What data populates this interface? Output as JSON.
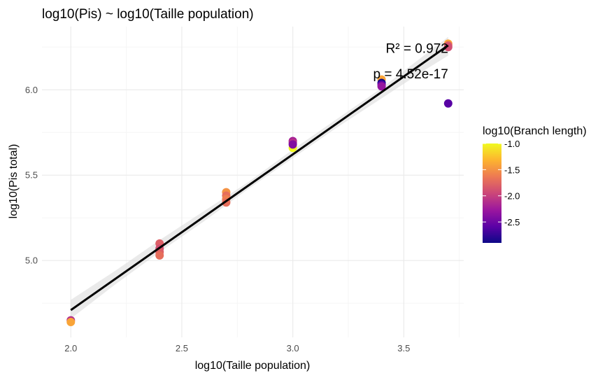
{
  "chart_data": {
    "type": "scatter",
    "title": "log10(Pis) ~ log10(Taille population)",
    "xlabel": "log10(Taille population)",
    "ylabel": "log10(Pis total)",
    "xlim": [
      1.87,
      3.77
    ],
    "ylim": [
      4.55,
      6.37
    ],
    "x_ticks": [
      2.0,
      2.5,
      3.0,
      3.5
    ],
    "x_tick_labels": [
      "2.0",
      "2.5",
      "3.0",
      "3.5"
    ],
    "y_ticks": [
      5.0,
      5.5,
      6.0
    ],
    "y_tick_labels": [
      "5.0",
      "5.5",
      "6.0"
    ],
    "grid": true,
    "points": [
      {
        "x": 2.0,
        "y": 4.65,
        "c": -2.1
      },
      {
        "x": 2.0,
        "y": 4.64,
        "c": -1.4
      },
      {
        "x": 2.4,
        "y": 5.1,
        "c": -1.8
      },
      {
        "x": 2.4,
        "y": 5.07,
        "c": -1.9
      },
      {
        "x": 2.4,
        "y": 5.05,
        "c": -1.8
      },
      {
        "x": 2.4,
        "y": 5.03,
        "c": -1.7
      },
      {
        "x": 2.7,
        "y": 5.4,
        "c": -1.5
      },
      {
        "x": 2.7,
        "y": 5.38,
        "c": -1.7
      },
      {
        "x": 2.7,
        "y": 5.36,
        "c": -1.6
      },
      {
        "x": 2.7,
        "y": 5.34,
        "c": -1.7
      },
      {
        "x": 3.0,
        "y": 5.66,
        "c": -1.0
      },
      {
        "x": 3.0,
        "y": 5.7,
        "c": -2.2
      },
      {
        "x": 3.0,
        "y": 5.69,
        "c": -2.1
      },
      {
        "x": 3.0,
        "y": 5.68,
        "c": -2.4
      },
      {
        "x": 3.4,
        "y": 6.06,
        "c": -1.4
      },
      {
        "x": 3.4,
        "y": 6.04,
        "c": -2.9
      },
      {
        "x": 3.4,
        "y": 6.03,
        "c": -2.6
      },
      {
        "x": 3.4,
        "y": 6.02,
        "c": -2.3
      },
      {
        "x": 3.7,
        "y": 6.27,
        "c": -1.4
      },
      {
        "x": 3.7,
        "y": 6.26,
        "c": -1.8
      },
      {
        "x": 3.7,
        "y": 6.25,
        "c": -1.9
      },
      {
        "x": 3.7,
        "y": 5.92,
        "c": -2.6
      }
    ],
    "fit_line": {
      "x": [
        2.0,
        3.7
      ],
      "y": [
        4.71,
        6.26
      ]
    },
    "confidence_band": {
      "x": [
        2.0,
        2.2,
        2.4,
        2.6,
        2.8,
        3.0,
        3.2,
        3.4,
        3.6,
        3.7
      ],
      "lower": [
        4.66,
        4.86,
        5.05,
        5.23,
        5.42,
        5.6,
        5.78,
        5.95,
        6.12,
        6.2
      ],
      "upper": [
        4.77,
        4.94,
        5.12,
        5.29,
        5.46,
        5.65,
        5.83,
        6.01,
        6.21,
        6.31
      ]
    },
    "annotations": [
      {
        "text": "R² = 0.972",
        "x": 3.7,
        "y": 6.25
      },
      {
        "text": "p = 4.52e-17",
        "x": 3.7,
        "y": 6.1
      }
    ],
    "legend": {
      "title": "log10(Branch length)",
      "position": "right",
      "min": -2.9,
      "max": -1.0,
      "ticks": [
        -1.0,
        -1.5,
        -2.0,
        -2.5
      ],
      "tick_labels": [
        "-1.0",
        "-1.5",
        "-2.0",
        "-2.5"
      ],
      "palette": [
        "#0d0887",
        "#5c01a6",
        "#9c179e",
        "#cc4778",
        "#ed7953",
        "#fdb42f",
        "#f0f921"
      ]
    },
    "colors": {
      "fit_line": "#000000",
      "band": "#d9d9d9",
      "grid_major": "#ebebeb",
      "grid_minor": "#f5f5f5"
    }
  }
}
